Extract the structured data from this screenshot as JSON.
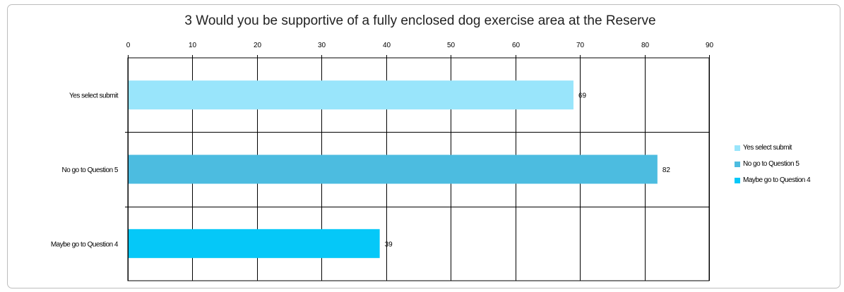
{
  "chart_data": {
    "type": "bar",
    "orientation": "horizontal",
    "title": "3 Would you be supportive of a fully enclosed dog exercise area at the Reserve",
    "categories": [
      "Yes select submit",
      "No go to Question 5",
      "Maybe go to Question 4"
    ],
    "values": [
      69,
      82,
      39
    ],
    "colors": [
      "#99e5fb",
      "#4cbce0",
      "#05c8f8"
    ],
    "xlim": [
      0,
      90
    ],
    "xticks": [
      0,
      10,
      20,
      30,
      40,
      50,
      60,
      70,
      80,
      90
    ],
    "xaxis_position": "top",
    "grid": true,
    "legend_position": "right",
    "legend": [
      "Yes select submit",
      "No go to Question 5",
      "Maybe go to Question 4"
    ]
  }
}
